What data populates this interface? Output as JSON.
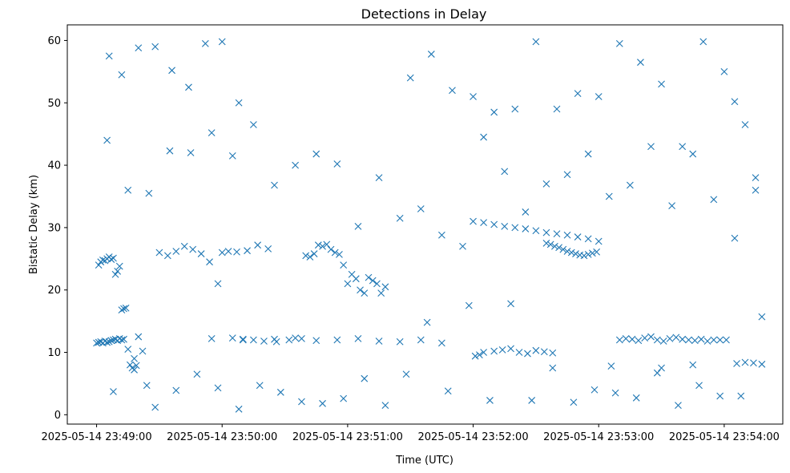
{
  "chart_data": {
    "type": "scatter",
    "title": "Detections in Delay",
    "xlabel": "Time (UTC)",
    "ylabel": "Bistatic Delay (km)",
    "marker": "x",
    "color": "#1f77b4",
    "grid": false,
    "legend": "none",
    "ylim": [
      -1.5,
      62.5
    ],
    "xlim": [
      "2025-05-14 23:48:46",
      "2025-05-14 23:54:28"
    ],
    "x_ticks": [
      "2025-05-14 23:49:00",
      "2025-05-14 23:50:00",
      "2025-05-14 23:51:00",
      "2025-05-14 23:52:00",
      "2025-05-14 23:53:00",
      "2025-05-14 23:54:00"
    ],
    "y_ticks": [
      "0",
      "10",
      "20",
      "30",
      "40",
      "50",
      "60"
    ],
    "series": [
      {
        "x": [
          "2025-05-14 23:49:00",
          "2025-05-14 23:49:01",
          "2025-05-14 23:49:02",
          "2025-05-14 23:49:03",
          "2025-05-14 23:49:04",
          "2025-05-14 23:49:05",
          "2025-05-14 23:49:06",
          "2025-05-14 23:49:07",
          "2025-05-14 23:49:08",
          "2025-05-14 23:49:09",
          "2025-05-14 23:49:10",
          "2025-05-14 23:49:11",
          "2025-05-14 23:49:12",
          "2025-05-14 23:49:13",
          "2025-05-14 23:49:01",
          "2025-05-14 23:49:02",
          "2025-05-14 23:49:03",
          "2025-05-14 23:49:04",
          "2025-05-14 23:49:05",
          "2025-05-14 23:49:06",
          "2025-05-14 23:49:07",
          "2025-05-14 23:49:08",
          "2025-05-14 23:49:09",
          "2025-05-14 23:49:10",
          "2025-05-14 23:49:11",
          "2025-05-14 23:49:12",
          "2025-05-14 23:49:13",
          "2025-05-14 23:49:14",
          "2025-05-14 23:49:15",
          "2025-05-14 23:49:16",
          "2025-05-14 23:49:17",
          "2025-05-14 23:49:18",
          "2025-05-14 23:49:19",
          "2025-05-14 23:49:20",
          "2025-05-14 23:49:22",
          "2025-05-14 23:49:24",
          "2025-05-14 23:49:30",
          "2025-05-14 23:49:34",
          "2025-05-14 23:49:38",
          "2025-05-14 23:49:42",
          "2025-05-14 23:49:46",
          "2025-05-14 23:49:50",
          "2025-05-14 23:49:54",
          "2025-05-14 23:49:58",
          "2025-05-14 23:50:00",
          "2025-05-14 23:50:03",
          "2025-05-14 23:50:07",
          "2025-05-14 23:50:12",
          "2025-05-14 23:50:17",
          "2025-05-14 23:50:22",
          "2025-05-14 23:50:05",
          "2025-05-14 23:50:10",
          "2025-05-14 23:50:15",
          "2025-05-14 23:50:20",
          "2025-05-14 23:50:26",
          "2025-05-14 23:50:32",
          "2025-05-14 23:50:38",
          "2025-05-14 23:50:40",
          "2025-05-14 23:50:42",
          "2025-05-14 23:50:44",
          "2025-05-14 23:50:46",
          "2025-05-14 23:50:48",
          "2025-05-14 23:50:50",
          "2025-05-14 23:50:52",
          "2025-05-14 23:50:54",
          "2025-05-14 23:50:56",
          "2025-05-14 23:50:58",
          "2025-05-14 23:51:00",
          "2025-05-14 23:51:02",
          "2025-05-14 23:51:04",
          "2025-05-14 23:51:06",
          "2025-05-14 23:51:08",
          "2025-05-14 23:51:10",
          "2025-05-14 23:51:12",
          "2025-05-14 23:51:14",
          "2025-05-14 23:51:16",
          "2025-05-14 23:51:18",
          "2025-05-14 23:49:55",
          "2025-05-14 23:50:10",
          "2025-05-14 23:50:25",
          "2025-05-14 23:50:35",
          "2025-05-14 23:50:45",
          "2025-05-14 23:50:55",
          "2025-05-14 23:51:05",
          "2025-05-14 23:51:15",
          "2025-05-14 23:51:25",
          "2025-05-14 23:51:35",
          "2025-05-14 23:51:45",
          "2025-05-14 23:52:00",
          "2025-05-14 23:52:05",
          "2025-05-14 23:52:10",
          "2025-05-14 23:52:15",
          "2025-05-14 23:52:20",
          "2025-05-14 23:52:25",
          "2025-05-14 23:52:30",
          "2025-05-14 23:52:35",
          "2025-05-14 23:52:40",
          "2025-05-14 23:52:45",
          "2025-05-14 23:52:50",
          "2025-05-14 23:52:55",
          "2025-05-14 23:53:00",
          "2025-05-14 23:52:35",
          "2025-05-14 23:52:37",
          "2025-05-14 23:52:39",
          "2025-05-14 23:52:41",
          "2025-05-14 23:52:43",
          "2025-05-14 23:52:45",
          "2025-05-14 23:52:47",
          "2025-05-14 23:52:49",
          "2025-05-14 23:52:51",
          "2025-05-14 23:52:53",
          "2025-05-14 23:52:55",
          "2025-05-14 23:52:57",
          "2025-05-14 23:52:59",
          "2025-05-14 23:53:10",
          "2025-05-14 23:53:13",
          "2025-05-14 23:53:16",
          "2025-05-14 23:53:19",
          "2025-05-14 23:53:22",
          "2025-05-14 23:53:25",
          "2025-05-14 23:53:28",
          "2025-05-14 23:53:31",
          "2025-05-14 23:53:34",
          "2025-05-14 23:53:37",
          "2025-05-14 23:53:40",
          "2025-05-14 23:53:43",
          "2025-05-14 23:53:46",
          "2025-05-14 23:53:49",
          "2025-05-14 23:53:52",
          "2025-05-14 23:53:55",
          "2025-05-14 23:53:58",
          "2025-05-14 23:54:01",
          "2025-05-14 23:52:01",
          "2025-05-14 23:52:03",
          "2025-05-14 23:52:05",
          "2025-05-14 23:52:10",
          "2025-05-14 23:52:14",
          "2025-05-14 23:52:18",
          "2025-05-14 23:52:22",
          "2025-05-14 23:52:26",
          "2025-05-14 23:52:30",
          "2025-05-14 23:52:34",
          "2025-05-14 23:52:38",
          "2025-05-14 23:53:06",
          "2025-05-14 23:53:30",
          "2025-05-14 23:53:45",
          "2025-05-14 23:54:06",
          "2025-05-14 23:54:10",
          "2025-05-14 23:54:14",
          "2025-05-14 23:54:18",
          "2025-05-14 23:49:06",
          "2025-05-14 23:49:12",
          "2025-05-14 23:49:20",
          "2025-05-14 23:49:28",
          "2025-05-14 23:49:36",
          "2025-05-14 23:49:44",
          "2025-05-14 23:49:52",
          "2025-05-14 23:50:00",
          "2025-05-14 23:50:08",
          "2025-05-14 23:51:30",
          "2025-05-14 23:51:40",
          "2025-05-14 23:51:50",
          "2025-05-14 23:52:00",
          "2025-05-14 23:52:10",
          "2025-05-14 23:52:20",
          "2025-05-14 23:52:30",
          "2025-05-14 23:52:40",
          "2025-05-14 23:52:50",
          "2025-05-14 23:53:00",
          "2025-05-14 23:53:10",
          "2025-05-14 23:53:20",
          "2025-05-14 23:53:30",
          "2025-05-14 23:53:40",
          "2025-05-14 23:53:50",
          "2025-05-14 23:54:00",
          "2025-05-14 23:54:05",
          "2025-05-14 23:54:10",
          "2025-05-14 23:54:15",
          "2025-05-14 23:49:05",
          "2025-05-14 23:49:15",
          "2025-05-14 23:49:25",
          "2025-05-14 23:49:35",
          "2025-05-14 23:49:45",
          "2025-05-14 23:49:55",
          "2025-05-14 23:50:05",
          "2025-05-14 23:50:15",
          "2025-05-14 23:50:25",
          "2025-05-14 23:50:35",
          "2025-05-14 23:50:45",
          "2025-05-14 23:50:55",
          "2025-05-14 23:51:05",
          "2025-05-14 23:51:15",
          "2025-05-14 23:51:25",
          "2025-05-14 23:51:35",
          "2025-05-14 23:51:45",
          "2025-05-14 23:51:55",
          "2025-05-14 23:52:05",
          "2025-05-14 23:52:15",
          "2025-05-14 23:52:25",
          "2025-05-14 23:52:35",
          "2025-05-14 23:52:45",
          "2025-05-14 23:52:55",
          "2025-05-14 23:53:05",
          "2025-05-14 23:53:15",
          "2025-05-14 23:53:25",
          "2025-05-14 23:53:35",
          "2025-05-14 23:53:45",
          "2025-05-14 23:53:55",
          "2025-05-14 23:54:05",
          "2025-05-14 23:54:15",
          "2025-05-14 23:49:08",
          "2025-05-14 23:49:18",
          "2025-05-14 23:49:28",
          "2025-05-14 23:49:38",
          "2025-05-14 23:49:48",
          "2025-05-14 23:49:58",
          "2025-05-14 23:50:08",
          "2025-05-14 23:50:18",
          "2025-05-14 23:50:28",
          "2025-05-14 23:50:38",
          "2025-05-14 23:50:48",
          "2025-05-14 23:50:58",
          "2025-05-14 23:51:08",
          "2025-05-14 23:51:18",
          "2025-05-14 23:51:28",
          "2025-05-14 23:51:38",
          "2025-05-14 23:51:48",
          "2025-05-14 23:51:58",
          "2025-05-14 23:52:08",
          "2025-05-14 23:52:18",
          "2025-05-14 23:52:28",
          "2025-05-14 23:52:38",
          "2025-05-14 23:52:48",
          "2025-05-14 23:52:58",
          "2025-05-14 23:53:08",
          "2025-05-14 23:53:18",
          "2025-05-14 23:53:28",
          "2025-05-14 23:53:38",
          "2025-05-14 23:53:48",
          "2025-05-14 23:53:58",
          "2025-05-14 23:54:08",
          "2025-05-14 23:54:18"
        ],
        "y": [
          11.5,
          11.6,
          11.7,
          11.5,
          11.8,
          11.6,
          11.7,
          11.9,
          12.0,
          12.1,
          11.9,
          12.2,
          12.0,
          12.1,
          24.0,
          24.5,
          24.8,
          24.7,
          25.0,
          25.3,
          24.9,
          25.1,
          22.5,
          23.0,
          23.8,
          16.8,
          17.0,
          17.1,
          10.5,
          8.0,
          7.5,
          9.0,
          7.9,
          12.5,
          10.2,
          4.7,
          26.0,
          25.5,
          26.2,
          27.0,
          26.5,
          25.8,
          24.5,
          21.0,
          26.0,
          26.2,
          26.1,
          26.3,
          27.2,
          26.6,
          12.3,
          12.1,
          12.0,
          11.8,
          11.7,
          12.0,
          12.2,
          25.5,
          25.3,
          25.8,
          27.2,
          27.0,
          27.3,
          26.5,
          26.0,
          25.7,
          24.0,
          21.0,
          22.5,
          21.8,
          20.0,
          19.5,
          22.0,
          21.5,
          21.0,
          19.5,
          20.5,
          12.2,
          12.0,
          12.1,
          12.3,
          11.9,
          12.0,
          12.2,
          11.8,
          11.7,
          12.0,
          11.5,
          31.0,
          30.8,
          30.5,
          30.2,
          30.0,
          29.8,
          29.5,
          29.2,
          29.0,
          28.8,
          28.5,
          28.2,
          27.8,
          27.5,
          27.3,
          27.0,
          26.8,
          26.5,
          26.2,
          26.0,
          25.8,
          25.6,
          25.5,
          25.7,
          25.9,
          26.1,
          12.0,
          12.2,
          12.1,
          11.9,
          12.3,
          12.5,
          12.0,
          11.8,
          12.2,
          12.4,
          12.1,
          12.0,
          11.9,
          12.1,
          11.8,
          12.0,
          12.0,
          12.0,
          9.4,
          9.6,
          10.0,
          10.2,
          10.4,
          10.6,
          10.0,
          9.8,
          10.3,
          10.1,
          9.9,
          7.8,
          7.5,
          8.0,
          8.2,
          8.4,
          8.3,
          8.1,
          57.5,
          54.5,
          58.8,
          59.0,
          55.2,
          52.5,
          59.5,
          59.8,
          50.0,
          54.0,
          57.8,
          52.0,
          51.0,
          48.5,
          49.0,
          59.8,
          49.0,
          51.5,
          51.0,
          59.5,
          56.5,
          53.0,
          43.0,
          59.8,
          55.0,
          50.2,
          46.5,
          36.0,
          44.0,
          36.0,
          35.5,
          42.3,
          42.0,
          45.2,
          41.5,
          46.5,
          36.8,
          40.0,
          41.8,
          40.2,
          30.2,
          38.0,
          31.5,
          33.0,
          28.8,
          27.0,
          44.5,
          39.0,
          32.5,
          37.0,
          38.5,
          41.8,
          35.0,
          36.8,
          43.0,
          33.5,
          41.8,
          34.5,
          28.3,
          38.0,
          3.7,
          7.2,
          1.2,
          3.9,
          6.5,
          4.3,
          0.9,
          4.7,
          3.6,
          2.1,
          1.8,
          2.6,
          5.8,
          1.5,
          6.5,
          14.8,
          3.8,
          17.5,
          2.3,
          17.8,
          2.3,
          7.5,
          2.0,
          4.0,
          3.5,
          2.7,
          6.7,
          1.5,
          4.7,
          3.0,
          3.0,
          15.7
        ]
      }
    ]
  }
}
